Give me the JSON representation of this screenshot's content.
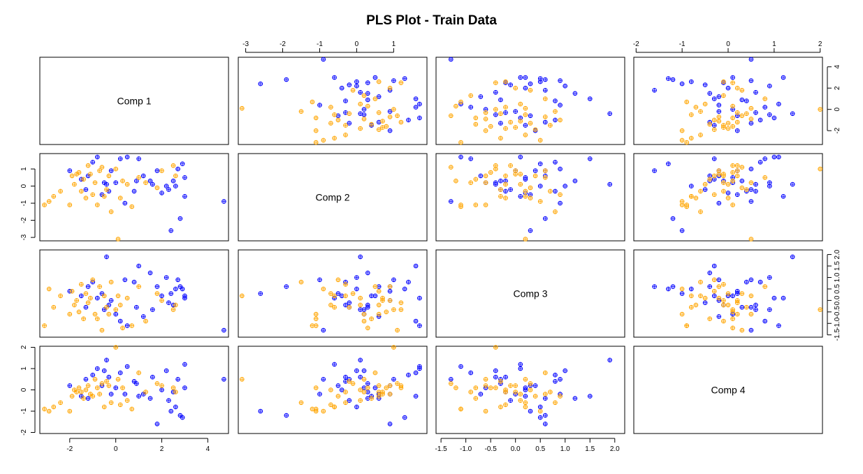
{
  "chart_data": {
    "type": "scatter",
    "title": "PLS Plot - Train Data",
    "variables": [
      "Comp 1",
      "Comp 2",
      "Comp 3",
      "Comp 4"
    ],
    "group_colors": [
      "#0000ff",
      "#ffa500"
    ],
    "ranges": [
      [
        -3.3,
        4.9
      ],
      [
        -3.2,
        1.9
      ],
      [
        -1.6,
        2.2
      ],
      [
        -2.05,
        2.05
      ]
    ],
    "ticks": [
      [
        -2,
        0,
        2,
        4
      ],
      [
        -3,
        -2,
        -1,
        0,
        1
      ],
      [
        -1.5,
        -1.0,
        -0.5,
        0.0,
        0.5,
        1.0,
        1.5,
        2.0
      ],
      [
        -2,
        -1,
        0,
        1,
        2
      ]
    ],
    "tick_labels": [
      [
        "-2",
        "0",
        "2",
        "4"
      ],
      [
        "-3",
        "-2",
        "-1",
        "0",
        "1"
      ],
      [
        "-1.5",
        "-1.0",
        "-0.5",
        "0.0",
        "0.5",
        "1.0",
        "1.5",
        "2.0"
      ],
      [
        "-2",
        "-1",
        "0",
        "1",
        "2"
      ]
    ],
    "axis_sides": {
      "bottom": [
        0,
        2
      ],
      "top": [
        1,
        3
      ],
      "left": [
        1,
        3
      ],
      "right": [
        0,
        2
      ]
    },
    "series": [
      {
        "group": 1,
        "color": "#0000ff",
        "points": [
          [
            -2.0,
            0.9,
            0.4,
            0.2
          ],
          [
            -1.5,
            0.4,
            0.2,
            -0.3
          ],
          [
            -1.2,
            0.6,
            0.6,
            -0.4
          ],
          [
            -1.0,
            1.4,
            0.8,
            0.7
          ],
          [
            -0.8,
            1.7,
            0.1,
            1.0
          ],
          [
            -0.5,
            0.2,
            -0.4,
            0.9
          ],
          [
            -0.4,
            0.1,
            1.9,
            1.4
          ],
          [
            -0.3,
            -0.3,
            -0.2,
            0.6
          ],
          [
            0.0,
            0.2,
            -0.6,
            0.1
          ],
          [
            0.2,
            1.6,
            -0.9,
            0.8
          ],
          [
            0.5,
            1.7,
            -1.1,
            1.1
          ],
          [
            0.8,
            -0.3,
            0.8,
            0.4
          ],
          [
            1.0,
            1.6,
            1.5,
            -0.3
          ],
          [
            1.2,
            0.6,
            -0.7,
            -0.2
          ],
          [
            1.5,
            0.3,
            1.2,
            -0.4
          ],
          [
            1.8,
            0.9,
            0.6,
            -1.6
          ],
          [
            2.0,
            -0.4,
            0.2,
            0.0
          ],
          [
            2.2,
            0.0,
            1.0,
            0.9
          ],
          [
            2.4,
            -2.6,
            0.3,
            -1.0
          ],
          [
            2.5,
            0.3,
            -0.2,
            -0.1
          ],
          [
            2.6,
            0.0,
            0.5,
            -0.8
          ],
          [
            2.7,
            1.0,
            0.9,
            0.5
          ],
          [
            2.8,
            -1.9,
            0.6,
            -1.2
          ],
          [
            2.9,
            1.3,
            0.5,
            -1.3
          ],
          [
            3.0,
            0.5,
            0.2,
            0.1
          ],
          [
            -1.3,
            -0.2,
            -0.3,
            0.5
          ],
          [
            -0.6,
            -0.5,
            0.3,
            0.2
          ],
          [
            0.4,
            -1.0,
            0.9,
            -0.2
          ],
          [
            1.6,
            0.1,
            -0.4,
            0.6
          ],
          [
            2.3,
            -0.2,
            -0.1,
            -0.5
          ],
          [
            3.0,
            -0.6,
            0.1,
            1.2
          ],
          [
            4.7,
            -0.9,
            -1.3,
            0.5
          ],
          [
            -0.2,
            0.9,
            0.0,
            -0.2
          ],
          [
            0.9,
            0.3,
            -0.3,
            0.3
          ]
        ]
      },
      {
        "group": 2,
        "color": "#ffa500",
        "points": [
          [
            -3.1,
            -1.1,
            -1.1,
            -0.9
          ],
          [
            -2.9,
            -0.9,
            0.5,
            -1.0
          ],
          [
            -2.7,
            -0.6,
            -0.3,
            -0.8
          ],
          [
            -2.4,
            -0.3,
            0.2,
            -0.6
          ],
          [
            -2.0,
            -1.1,
            -0.6,
            -1.0
          ],
          [
            -1.9,
            0.6,
            0.4,
            -0.3
          ],
          [
            -1.8,
            0.1,
            -0.2,
            0.0
          ],
          [
            -1.6,
            0.8,
            -0.5,
            0.1
          ],
          [
            -1.5,
            -0.3,
            0.7,
            -0.1
          ],
          [
            -1.4,
            0.4,
            -0.8,
            -0.4
          ],
          [
            -1.3,
            -0.7,
            0.3,
            0.0
          ],
          [
            -1.2,
            1.2,
            -0.1,
            0.2
          ],
          [
            -1.1,
            0.7,
            0.1,
            -0.2
          ],
          [
            -1.0,
            -0.5,
            0.9,
            -0.3
          ],
          [
            -0.9,
            0.2,
            -0.6,
            0.5
          ],
          [
            -0.8,
            -1.1,
            -0.8,
            0.1
          ],
          [
            -0.7,
            0.9,
            0.6,
            -0.2
          ],
          [
            -0.6,
            1.1,
            -1.3,
            0.3
          ],
          [
            -0.5,
            -0.6,
            0.2,
            -0.8
          ],
          [
            -0.4,
            -0.2,
            -0.3,
            0.4
          ],
          [
            -0.3,
            0.6,
            -0.6,
            0.2
          ],
          [
            -0.2,
            -1.5,
            0.8,
            -0.6
          ],
          [
            0.0,
            1.0,
            -0.4,
            2.0
          ],
          [
            0.1,
            -3.1,
            0.2,
            0.5
          ],
          [
            0.2,
            -0.7,
            -0.2,
            -0.7
          ],
          [
            0.3,
            0.3,
            -1.2,
            0.1
          ],
          [
            0.5,
            0.1,
            0.1,
            -0.5
          ],
          [
            0.7,
            -1.2,
            -1.1,
            -0.9
          ],
          [
            1.0,
            0.5,
            0.6,
            0.8
          ],
          [
            1.3,
            0.2,
            -0.9,
            -0.1
          ],
          [
            1.8,
            -0.1,
            0.3,
            0.3
          ],
          [
            2.0,
            0.9,
            0.0,
            0.2
          ],
          [
            2.5,
            1.2,
            -0.4,
            0.1
          ],
          [
            2.6,
            0.6,
            -0.2,
            -0.1
          ],
          [
            -1.7,
            0.7,
            0.0,
            -0.1
          ]
        ]
      }
    ]
  }
}
